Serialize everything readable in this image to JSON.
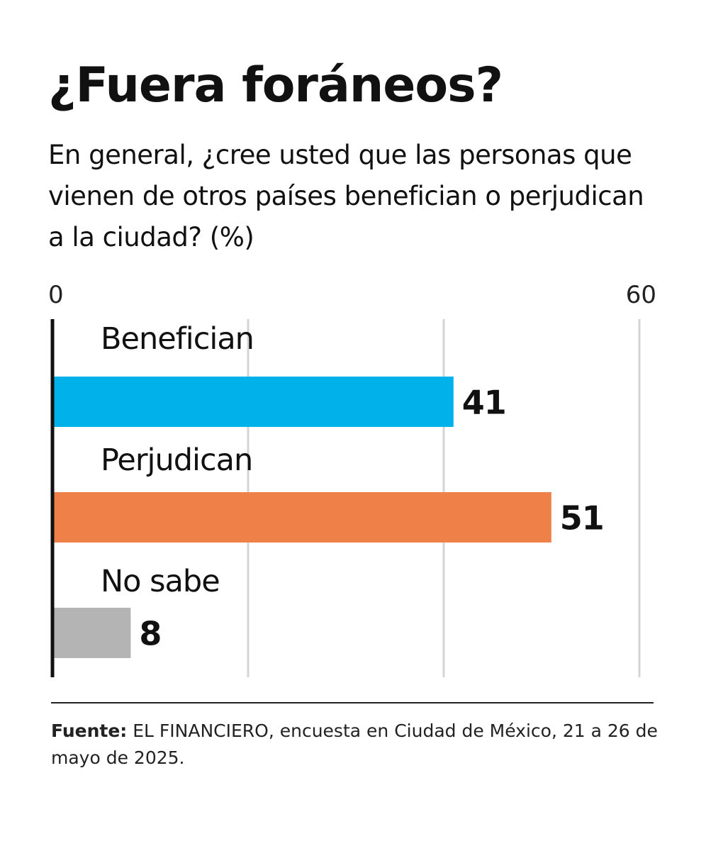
{
  "title": "¿Fuera foráneos?",
  "subtitle": "En general, ¿cree usted que las personas que vienen de otros países benefician o perjudican a la ciudad?  (%)",
  "chart_data": {
    "type": "bar",
    "orientation": "horizontal",
    "categories": [
      "Benefician",
      "Perjudican",
      "No sabe"
    ],
    "values": [
      41,
      51,
      8
    ],
    "colors": [
      "#00b1ea",
      "#ee8048",
      "#b4b4b4"
    ],
    "xlim": [
      0,
      60
    ],
    "ticks": [
      0,
      60
    ],
    "tick_labels": [
      "0",
      "60"
    ],
    "gridlines": [
      20,
      40,
      60
    ],
    "grid": true,
    "data_labels": [
      "41",
      "51",
      "8"
    ]
  },
  "source": {
    "lead": "Fuente:",
    "text": " EL FINANCIERO, encuesta en Ciudad de México, 21 a 26 de mayo de 2025."
  }
}
